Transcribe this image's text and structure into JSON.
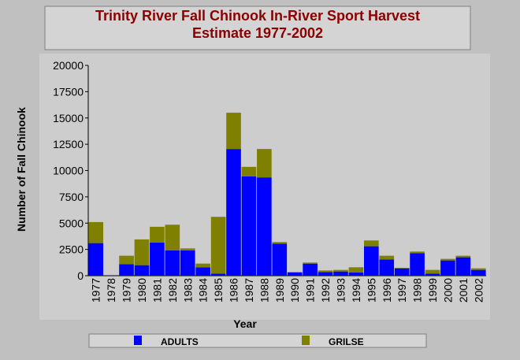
{
  "chart_data": {
    "type": "stacked_bar",
    "title": "Trinity River Fall Chinook In-River Sport Harvest Estimate 1977-2002",
    "x_label": "Year",
    "y_label": "Number of Fall Chinook",
    "categories": [
      "1977",
      "1978",
      "1979",
      "1980",
      "1981",
      "1982",
      "1983",
      "1984",
      "1985",
      "1986",
      "1987",
      "1988",
      "1989",
      "1990",
      "1991",
      "1992",
      "1993",
      "1994",
      "1995",
      "1996",
      "1997",
      "1998",
      "1999",
      "2000",
      "2001",
      "2002"
    ],
    "series": [
      {
        "name": "ADULTS",
        "color": "#0000ff",
        "values": [
          3100,
          0,
          1100,
          1000,
          3150,
          2400,
          2400,
          800,
          200,
          12050,
          9450,
          9350,
          3050,
          300,
          1150,
          350,
          400,
          300,
          2800,
          1550,
          700,
          2150,
          200,
          1450,
          1750,
          550
        ]
      },
      {
        "name": "GRILSE",
        "color": "#808000",
        "values": [
          2000,
          0,
          800,
          2450,
          1500,
          2450,
          200,
          350,
          5400,
          3450,
          900,
          2700,
          150,
          50,
          100,
          150,
          150,
          500,
          550,
          350,
          50,
          150,
          350,
          150,
          150,
          150
        ]
      }
    ],
    "ylim": [
      0,
      20000
    ],
    "yticks": [
      0,
      2500,
      5000,
      7500,
      10000,
      12500,
      15000,
      17500,
      20000
    ]
  }
}
